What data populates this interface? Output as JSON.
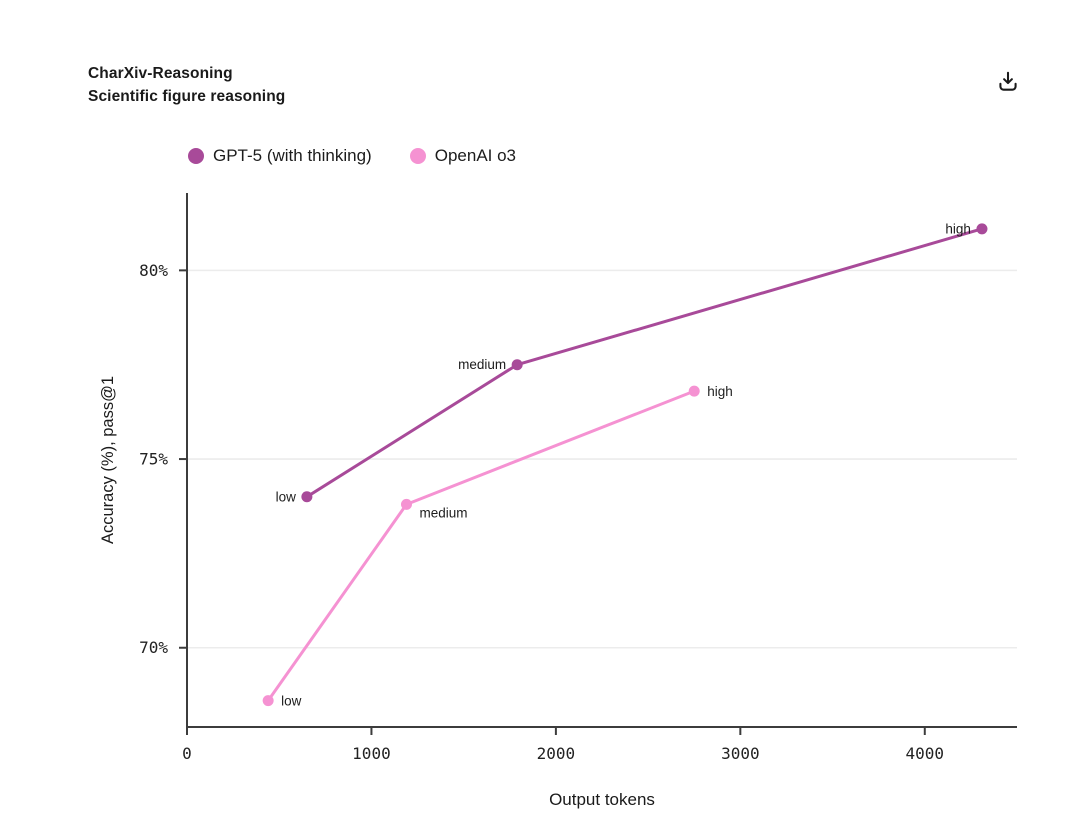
{
  "header": {
    "download_icon": "download-arrow-into-tray"
  },
  "chart_data": {
    "type": "line",
    "title": "CharXiv-Reasoning",
    "subtitle": "Scientific figure reasoning",
    "xlabel": "Output tokens",
    "ylabel": "Accuracy (%), pass@1",
    "xlim": [
      0,
      4500
    ],
    "ylim": [
      67.9,
      82.05
    ],
    "x_ticks": [
      0,
      1000,
      2000,
      3000,
      4000
    ],
    "x_tick_labels": [
      "0",
      "1000",
      "2000",
      "3000",
      "4000"
    ],
    "y_ticks": [
      70,
      75,
      80
    ],
    "y_tick_labels": [
      "70%",
      "75%",
      "80%"
    ],
    "grid": "horizontal",
    "legend_position": "top-left",
    "series": [
      {
        "name": "GPT-5 (with thinking)",
        "color": "#a84a99",
        "points": [
          {
            "x": 650,
            "y": 74.0,
            "label": "low",
            "label_side": "left"
          },
          {
            "x": 1790,
            "y": 77.5,
            "label": "medium",
            "label_side": "left"
          },
          {
            "x": 4310,
            "y": 81.1,
            "label": "high",
            "label_side": "left"
          }
        ]
      },
      {
        "name": "OpenAI o3",
        "color": "#f592d2",
        "points": [
          {
            "x": 440,
            "y": 68.6,
            "label": "low",
            "label_side": "right"
          },
          {
            "x": 1190,
            "y": 73.8,
            "label": "medium",
            "label_side": "right-below"
          },
          {
            "x": 2750,
            "y": 76.8,
            "label": "high",
            "label_side": "right"
          }
        ]
      }
    ],
    "colors": {
      "axis": "#3c3c3c",
      "grid": "#ececec",
      "text": "#1a1a1a",
      "tick_text": "#222222",
      "point_label": "#1d1d1d"
    }
  }
}
